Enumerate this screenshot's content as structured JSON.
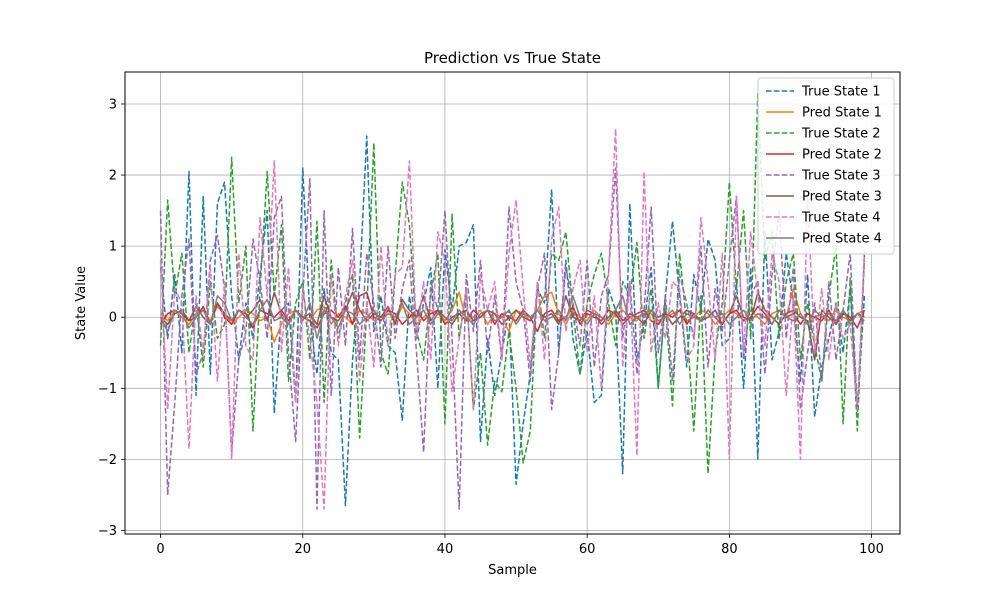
{
  "chart_data": {
    "type": "line",
    "title": "Prediction vs True State",
    "xlabel": "Sample",
    "ylabel": "State Value",
    "xlim": [
      -5,
      104
    ],
    "ylim": [
      -3.05,
      3.45
    ],
    "xticks": [
      0,
      20,
      40,
      60,
      80,
      100
    ],
    "yticks": [
      -3,
      -2,
      -1,
      0,
      1,
      2,
      3
    ],
    "grid": true,
    "legend_position": "top-right",
    "series": [
      {
        "name": "True State 1",
        "style": "dashed",
        "color": "#1f77b4",
        "values": [
          0.7,
          -0.3,
          0.6,
          -0.5,
          2.05,
          -1.1,
          1.7,
          -0.8,
          1.6,
          1.9,
          0.3,
          -0.6,
          0.2,
          -0.3,
          0.6,
          1.5,
          -1.35,
          0.1,
          0.2,
          -1.2,
          2.1,
          0.0,
          -0.8,
          0.4,
          -0.5,
          -0.6,
          -2.65,
          -0.6,
          0.5,
          2.55,
          -0.2,
          0.3,
          -0.4,
          -0.5,
          -1.45,
          0.3,
          -0.3,
          0.2,
          0.7,
          -1.0,
          0.95,
          0.1,
          1.0,
          1.05,
          1.3,
          -1.75,
          -0.3,
          -1.1,
          -0.5,
          0.1,
          -2.35,
          -1.5,
          -0.8,
          0.4,
          0.2,
          1.8,
          -0.5,
          0.8,
          -0.3,
          -0.8,
          -0.2,
          -1.2,
          -1.1,
          0.4,
          0.1,
          -2.2,
          1.6,
          -0.6,
          -0.1,
          0.7,
          -1.0,
          0.3,
          1.35,
          0.3,
          -0.7,
          0.6,
          0.1,
          1.1,
          0.8,
          -0.4,
          -0.3,
          0.5,
          -1.0,
          0.7,
          -2.0,
          1.2,
          -0.6,
          -0.2,
          0.9,
          0.2,
          -0.9,
          0.6,
          -1.4,
          -0.7,
          -0.3,
          0.2,
          -0.5,
          0.4,
          -1.3,
          0.3
        ]
      },
      {
        "name": "Pred State 1",
        "style": "solid",
        "color": "#ff7f0e",
        "values": [
          0.05,
          -0.05,
          0.1,
          0.0,
          -0.1,
          0.05,
          0.1,
          -0.05,
          0.15,
          0.05,
          -0.1,
          0.0,
          0.1,
          0.05,
          -0.05,
          0.0,
          -0.35,
          -0.1,
          0.05,
          0.1,
          0.0,
          -0.05,
          0.1,
          0.15,
          -0.1,
          0.05,
          0.0,
          -0.1,
          0.1,
          0.05,
          -0.05,
          0.0,
          0.1,
          -0.05,
          0.15,
          0.05,
          -0.1,
          0.0,
          0.1,
          0.05,
          -0.05,
          0.1,
          0.35,
          -0.05,
          0.0,
          0.1,
          -0.1,
          0.05,
          0.0,
          -0.2,
          0.1,
          0.05,
          -0.05,
          0.1,
          0.3,
          0.35,
          0.05,
          -0.1,
          0.1,
          0.0,
          -0.05,
          0.1,
          0.0,
          -0.1,
          0.05,
          0.1,
          0.0,
          -0.05,
          0.1,
          0.05,
          -0.1,
          0.0,
          0.05,
          0.1,
          -0.05,
          0.0,
          0.1,
          0.05,
          -0.1,
          0.0,
          0.1,
          0.05,
          -0.05,
          0.1,
          0.0,
          -0.1,
          0.05,
          0.1,
          0.0,
          0.4,
          0.05,
          -0.1,
          0.0,
          0.05,
          -0.05,
          0.1,
          0.0,
          -0.05,
          0.05,
          0.1
        ]
      },
      {
        "name": "True State 2",
        "style": "dashed",
        "color": "#2ca02c",
        "values": [
          -0.4,
          1.65,
          0.3,
          0.9,
          -0.5,
          0.2,
          -0.7,
          0.5,
          -0.3,
          -0.1,
          2.25,
          0.2,
          1.0,
          -1.6,
          0.4,
          2.05,
          0.3,
          1.3,
          -0.9,
          0.2,
          0.5,
          -0.6,
          1.35,
          -1.2,
          0.8,
          -0.3,
          0.2,
          0.6,
          -1.7,
          0.1,
          2.45,
          -0.5,
          -0.8,
          0.6,
          1.9,
          1.3,
          -0.2,
          -0.6,
          0.3,
          0.9,
          -1.5,
          1.45,
          -0.3,
          0.4,
          -1.3,
          -0.5,
          -1.8,
          -0.9,
          -1.05,
          -0.2,
          -1.0,
          -2.05,
          -1.6,
          0.5,
          -0.3,
          0.9,
          0.8,
          1.2,
          0.1,
          -0.8,
          0.2,
          0.6,
          0.9,
          0.2,
          -0.4,
          0.5,
          0.3,
          1.05,
          -0.3,
          0.4,
          -1.0,
          0.2,
          -1.25,
          0.9,
          -0.1,
          -1.6,
          0.3,
          -2.2,
          -0.5,
          0.2,
          1.9,
          0.4,
          1.5,
          -0.3,
          3.15,
          0.8,
          1.2,
          -0.3,
          0.5,
          0.9,
          -0.6,
          0.2,
          -0.4,
          -0.9,
          0.3,
          1.0,
          -1.5,
          0.55,
          -1.6,
          0.9
        ]
      },
      {
        "name": "Pred State 2",
        "style": "solid",
        "color": "#d62728",
        "values": [
          -0.1,
          0.05,
          0.1,
          0.05,
          -0.05,
          0.0,
          0.15,
          -0.1,
          0.2,
          0.0,
          -0.1,
          0.1,
          0.05,
          -0.15,
          0.1,
          0.05,
          0.0,
          0.1,
          -0.05,
          0.1,
          0.0,
          -0.05,
          -0.15,
          0.05,
          0.1,
          0.0,
          0.15,
          -0.1,
          0.3,
          0.35,
          0.0,
          -0.05,
          0.1,
          0.05,
          -0.1,
          0.0,
          0.1,
          -0.05,
          0.05,
          0.1,
          -0.1,
          0.0,
          0.05,
          -0.05,
          0.1,
          0.0,
          0.1,
          -0.1,
          0.05,
          0.0,
          -0.05,
          0.1,
          0.0,
          -0.2,
          0.05,
          0.1,
          -0.05,
          0.0,
          0.15,
          -0.1,
          0.05,
          0.0,
          -0.05,
          0.1,
          0.05,
          -0.1,
          0.0,
          0.05,
          0.1,
          -0.05,
          -0.1,
          0.05,
          0.0,
          0.1,
          -0.1,
          0.05,
          -0.05,
          0.1,
          0.0,
          -0.1,
          0.05,
          0.1,
          -0.05,
          0.0,
          0.15,
          0.05,
          -0.1,
          0.1,
          0.0,
          0.05,
          -0.1,
          0.05,
          0.0,
          -0.05,
          0.1,
          -0.1,
          0.05,
          0.0,
          -0.15,
          0.1
        ]
      },
      {
        "name": "True State 3",
        "style": "dashed",
        "color": "#9467bd",
        "values": [
          1.5,
          -2.5,
          -1.2,
          0.3,
          1.1,
          -0.8,
          -0.5,
          0.8,
          1.15,
          0.4,
          -1.9,
          -0.6,
          -0.2,
          1.1,
          0.5,
          -0.3,
          1.4,
          1.7,
          -0.5,
          -1.75,
          0.3,
          1.95,
          -2.7,
          1.5,
          -1.1,
          0.7,
          -0.4,
          1.25,
          -0.6,
          0.9,
          0.2,
          -0.7,
          1.0,
          -0.3,
          0.4,
          0.8,
          -0.5,
          -1.9,
          0.5,
          0.1,
          1.5,
          -0.3,
          -2.7,
          0.6,
          -0.2,
          0.8,
          -0.5,
          0.3,
          -0.6,
          1.55,
          0.5,
          0.1,
          -0.9,
          0.4,
          0.9,
          -1.3,
          -0.5,
          0.7,
          0.2,
          -0.4,
          0.8,
          -0.7,
          0.3,
          0.6,
          2.1,
          -0.3,
          0.5,
          -0.8,
          0.1,
          1.55,
          -0.5,
          0.3,
          -0.9,
          0.6,
          0.2,
          -0.3,
          1.0,
          -0.7,
          0.4,
          -0.2,
          0.8,
          1.7,
          -0.6,
          0.3,
          0.5,
          -0.8,
          0.6,
          1.5,
          -0.3,
          0.7,
          -1.3,
          -0.5,
          0.2,
          -0.9,
          0.5,
          -0.6,
          0.1,
          0.9,
          -1.35,
          0.8
        ]
      },
      {
        "name": "Pred State 3",
        "style": "solid",
        "color": "#8c564b",
        "values": [
          0.0,
          -0.1,
          0.05,
          0.1,
          -0.05,
          0.15,
          0.0,
          -0.1,
          0.2,
          0.05,
          -0.05,
          0.1,
          0.0,
          0.1,
          0.25,
          -0.05,
          0.35,
          0.05,
          -0.1,
          0.1,
          0.0,
          0.05,
          -0.1,
          0.3,
          0.0,
          -0.05,
          0.1,
          0.35,
          0.1,
          -0.05,
          0.05,
          0.0,
          0.15,
          -0.1,
          0.25,
          0.1,
          0.0,
          0.3,
          -0.05,
          0.1,
          0.0,
          -0.1,
          0.05,
          0.1,
          -0.05,
          0.0,
          0.1,
          0.05,
          -0.1,
          0.0,
          0.1,
          0.0,
          -0.05,
          0.1,
          0.0,
          0.05,
          -0.1,
          0.3,
          0.0,
          -0.05,
          0.1,
          0.05,
          -0.1,
          0.0,
          0.1,
          -0.05,
          0.05,
          0.0,
          -0.1,
          0.1,
          0.0,
          0.05,
          -0.1,
          0.0,
          0.1,
          0.05,
          -0.05,
          0.0,
          0.1,
          -0.1,
          0.05,
          0.3,
          0.0,
          -0.05,
          0.35,
          0.1,
          0.0,
          -0.1,
          0.05,
          0.1,
          0.0,
          -0.05,
          -0.6,
          0.1,
          0.0,
          -0.1,
          0.1,
          -0.05,
          0.05,
          0.0
        ]
      },
      {
        "name": "True State 4",
        "style": "dashed",
        "color": "#e377c2",
        "values": [
          0.8,
          -1.3,
          0.4,
          0.2,
          -1.85,
          0.3,
          -0.5,
          0.7,
          -0.9,
          0.5,
          -2.0,
          0.9,
          -0.4,
          -0.6,
          1.4,
          0.3,
          2.2,
          -0.5,
          0.7,
          -1.2,
          0.4,
          -0.3,
          -1.2,
          -2.7,
          0.6,
          -0.4,
          0.3,
          0.8,
          -0.9,
          0.2,
          -0.7,
          1.0,
          -0.4,
          0.6,
          0.7,
          2.2,
          -0.3,
          0.5,
          -0.6,
          1.2,
          0.8,
          -1.05,
          -0.3,
          0.4,
          -1.3,
          0.6,
          0.1,
          0.5,
          -0.6,
          0.9,
          1.65,
          0.4,
          -0.7,
          0.5,
          -0.6,
          1.1,
          1.55,
          -0.2,
          0.4,
          0.8,
          -0.5,
          0.3,
          -1.0,
          0.6,
          2.65,
          -0.7,
          0.5,
          -1.95,
          2.05,
          -0.5,
          0.2,
          -0.3,
          0.5,
          0.4,
          -0.6,
          -0.4,
          1.4,
          0.5,
          -0.6,
          0.9,
          -2.0,
          1.7,
          -0.5,
          1.2,
          0.3,
          -0.4,
          0.9,
          0.5,
          -1.1,
          0.3,
          -2.0,
          1.7,
          -0.5,
          0.4,
          -0.6,
          0.2,
          -0.3,
          -0.1,
          -1.3,
          0.95
        ]
      },
      {
        "name": "Pred State 4",
        "style": "solid",
        "color": "#7f7f7f",
        "values": [
          0.0,
          -0.2,
          0.1,
          0.05,
          -0.15,
          0.0,
          0.1,
          -0.1,
          0.3,
          0.2,
          -0.05,
          0.1,
          0.0,
          -0.1,
          0.1,
          0.25,
          -0.05,
          0.0,
          -0.1,
          0.1,
          -0.05,
          0.2,
          -0.3,
          0.1,
          0.0,
          -0.15,
          0.1,
          0.05,
          -0.1,
          0.0,
          0.1,
          -0.05,
          0.05,
          0.0,
          0.2,
          -0.1,
          0.0,
          0.1,
          -0.1,
          0.05,
          0.0,
          -0.05,
          0.1,
          0.0,
          -0.1,
          0.05,
          0.1,
          -0.05,
          0.0,
          0.1,
          -0.1,
          0.05,
          0.0,
          0.1,
          -0.05,
          0.0,
          0.1,
          -0.05,
          0.3,
          0.0,
          -0.1,
          0.05,
          0.0,
          -0.05,
          0.1,
          0.3,
          -0.1,
          0.0,
          0.05,
          0.1,
          -0.05,
          0.0,
          0.1,
          -0.1,
          0.05,
          0.0,
          -0.05,
          0.1,
          0.0,
          0.05,
          -0.1,
          0.0,
          0.1,
          -0.05,
          0.05,
          0.0,
          -0.1,
          0.1,
          0.0,
          -0.05,
          0.05,
          -0.1,
          0.1,
          0.0,
          0.05,
          -0.05,
          0.1,
          -0.1,
          0.05,
          -0.05
        ]
      }
    ]
  }
}
